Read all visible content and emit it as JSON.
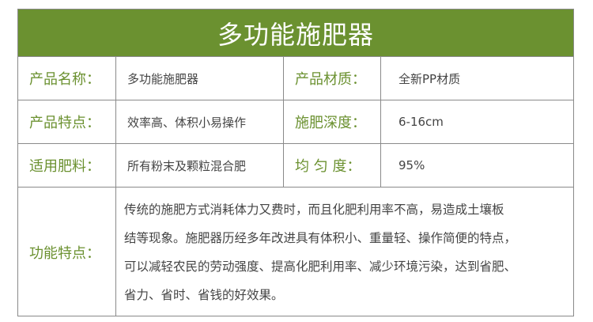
{
  "title": "多功能施肥器",
  "rows": [
    {
      "label1": "产品名称：",
      "value1": "多功能施肥器",
      "label2": "产品材质：",
      "value2": "全新PP材质"
    },
    {
      "label1": "产品特点：",
      "value1": "效率高、体积小易操作",
      "label2": "施肥深度：",
      "value2": "6-16cm"
    },
    {
      "label1": "适用肥料：",
      "value1": "所有粉末及颗粒混合肥",
      "label2": "均 匀 度：",
      "value2": "95%"
    }
  ],
  "feature": {
    "label": "功能特点：",
    "lines": [
      "传统的施肥方式消耗体力又费时，而且化肥利用率不高，易造成土壤板",
      "结等现象。施肥器历经多年改进具有体积小、重量轻、操作简便的特点，",
      "可以减轻农民的劳动强度、提高化肥利用率、减少环境污染，达到省肥、",
      "省力、省时、省钱的好效果。"
    ]
  },
  "colors": {
    "accent": "#6b9130",
    "text": "#444444",
    "border": "#8a8a8a"
  }
}
